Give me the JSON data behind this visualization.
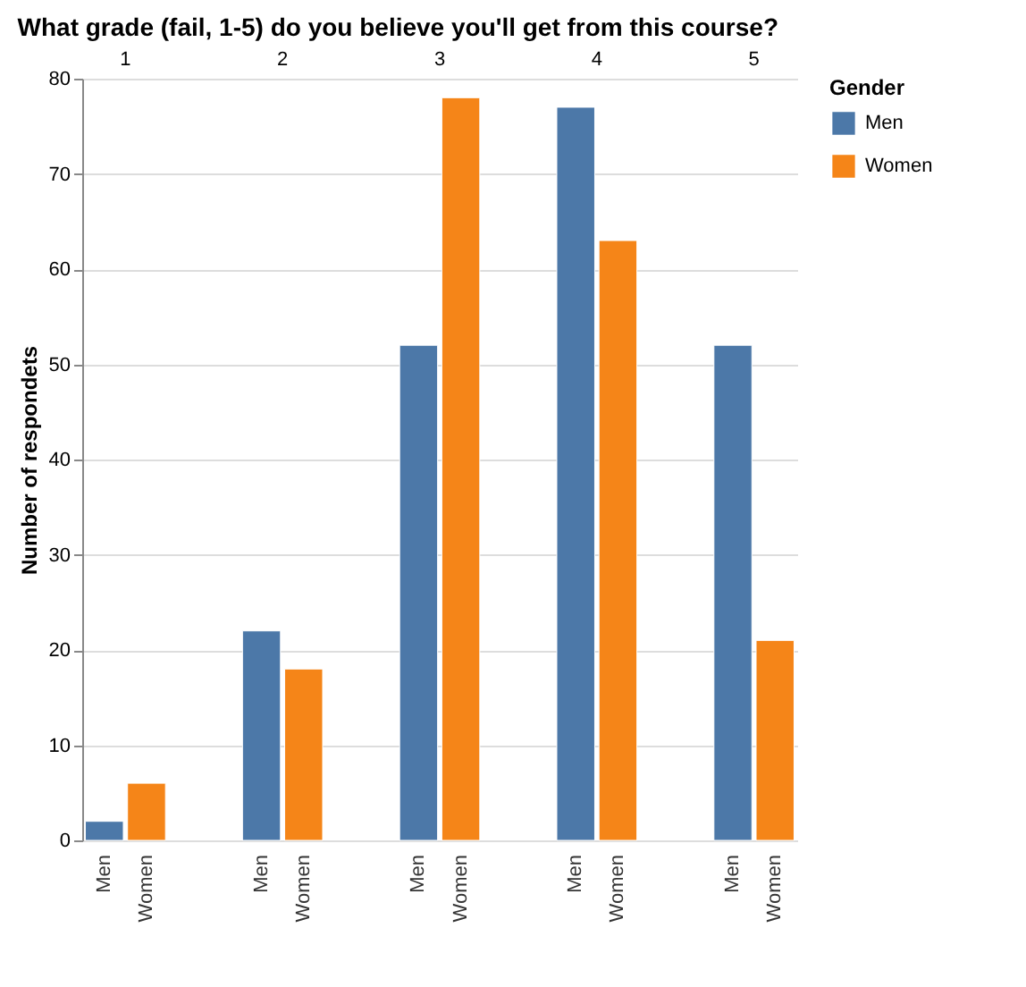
{
  "chart_data": {
    "type": "bar",
    "title": "What grade (fail, 1-5) do you believe you'll get from this course?",
    "ylabel": "Number of respondets",
    "legend_title": "Gender",
    "legend": "right",
    "grid": "y",
    "categories": [
      "1",
      "2",
      "3",
      "4",
      "5"
    ],
    "series": [
      {
        "name": "Men",
        "color": "#4c78a8",
        "values": [
          2,
          22,
          52,
          77,
          52
        ]
      },
      {
        "name": "Women",
        "color": "#f58518",
        "values": [
          6,
          18,
          78,
          63,
          21
        ]
      }
    ],
    "ylim": [
      0,
      80
    ],
    "yticks": [
      0,
      10,
      20,
      30,
      40,
      50,
      60,
      70,
      80
    ]
  }
}
